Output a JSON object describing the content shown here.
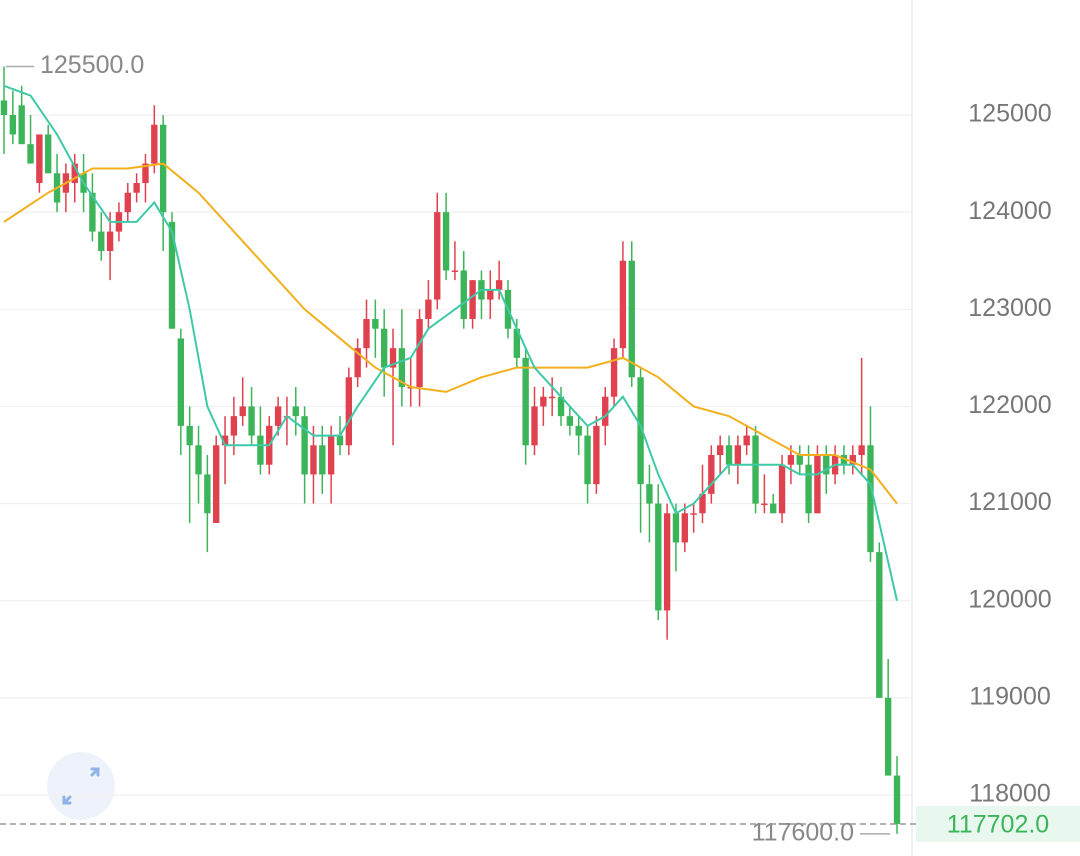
{
  "chart_data": {
    "type": "candlestick",
    "up_color": "#e0414f",
    "down_color": "#3cb55a",
    "ylim": [
      117372,
      126184
    ],
    "yticks": [
      118000,
      119000,
      120000,
      121000,
      122000,
      123000,
      124000,
      125000
    ],
    "grid": true,
    "open": [
      125150,
      125000,
      125100,
      124700,
      124300,
      124800,
      124400,
      124200,
      124300,
      124400,
      124200,
      123800,
      123600,
      123800,
      124000,
      124200,
      124300,
      124500,
      124900,
      123900,
      122700,
      121800,
      121600,
      121300,
      120800,
      121600,
      121700,
      121900,
      122000,
      121700,
      121400,
      121800,
      121900,
      122000,
      121900,
      121300,
      121600,
      121300,
      121700,
      121600,
      122300,
      122600,
      122900,
      122800,
      122400,
      122600,
      122200,
      122200,
      122900,
      123100,
      124000,
      123400,
      123400,
      122900,
      123300,
      123100,
      123200,
      123200,
      122800,
      122500,
      121600,
      122000,
      122100,
      122100,
      121900,
      121800,
      121700,
      121200,
      121800,
      122100,
      122600,
      123500,
      122300,
      121200,
      121000,
      119900,
      120900,
      120600,
      120900,
      120900,
      121100,
      121500,
      121600,
      121400,
      121600,
      121700,
      121000,
      121000,
      120900,
      121400,
      121500,
      121400,
      120900,
      121500,
      121300,
      121500,
      121400,
      121500,
      121600,
      120500,
      119000,
      118200
    ],
    "high": [
      125500,
      125250,
      125300,
      125000,
      124800,
      124900,
      124600,
      124500,
      124600,
      124600,
      124400,
      124000,
      124000,
      124100,
      124300,
      124400,
      124600,
      125100,
      125000,
      124000,
      122800,
      122000,
      121800,
      121500,
      121700,
      121900,
      122100,
      122300,
      122200,
      122000,
      121900,
      122100,
      122100,
      122200,
      122000,
      121800,
      121800,
      121800,
      121900,
      122400,
      122700,
      123100,
      123100,
      123000,
      122800,
      123000,
      122500,
      123000,
      123300,
      124200,
      124200,
      123700,
      123600,
      123300,
      123400,
      123400,
      123500,
      123300,
      122900,
      122600,
      122200,
      122200,
      122300,
      122200,
      122000,
      121900,
      121800,
      121900,
      122200,
      122700,
      123700,
      123700,
      122400,
      121400,
      121200,
      121000,
      121000,
      121000,
      121000,
      121400,
      121600,
      121700,
      121700,
      121700,
      121800,
      121800,
      121300,
      121100,
      121500,
      121600,
      121600,
      121600,
      121600,
      121600,
      121600,
      121600,
      121600,
      122500,
      122000,
      120600,
      119400,
      118400
    ],
    "low": [
      124600,
      124700,
      124700,
      124500,
      124200,
      124400,
      124000,
      124000,
      124100,
      124000,
      123700,
      123500,
      123300,
      123700,
      123900,
      124100,
      124100,
      124400,
      123600,
      122800,
      121500,
      120800,
      121000,
      120500,
      120800,
      121200,
      121500,
      121800,
      121600,
      121300,
      121300,
      121700,
      121600,
      121700,
      121000,
      121000,
      121100,
      121000,
      121500,
      121500,
      122200,
      122400,
      122500,
      122100,
      121600,
      122000,
      122000,
      122000,
      122800,
      123000,
      123300,
      123300,
      122800,
      122800,
      122900,
      122900,
      123100,
      122700,
      122400,
      121400,
      121500,
      121800,
      121900,
      121800,
      121700,
      121500,
      121000,
      121100,
      121600,
      122000,
      122500,
      122200,
      120700,
      120600,
      119800,
      119600,
      120300,
      120500,
      120700,
      120800,
      121000,
      121300,
      121300,
      121200,
      121500,
      120900,
      120900,
      120900,
      120800,
      121200,
      121300,
      120800,
      120900,
      121100,
      121200,
      121300,
      121300,
      121300,
      120400,
      119000,
      118200,
      117600
    ],
    "close": [
      125000,
      124800,
      124700,
      124500,
      124800,
      124400,
      124100,
      124400,
      124500,
      124200,
      123800,
      123600,
      123800,
      124000,
      124200,
      124300,
      124500,
      124900,
      124000,
      122800,
      121800,
      121600,
      121300,
      120900,
      121600,
      121700,
      121900,
      122000,
      121700,
      121400,
      121800,
      122000,
      121900,
      121900,
      121300,
      121600,
      121300,
      121700,
      121600,
      122300,
      122600,
      122900,
      122800,
      122400,
      122600,
      122200,
      122200,
      122900,
      123100,
      124000,
      123400,
      123400,
      122900,
      123300,
      123100,
      123200,
      123300,
      122800,
      122500,
      121600,
      122000,
      122100,
      122100,
      121900,
      121800,
      121700,
      121200,
      121800,
      122100,
      122600,
      123500,
      122300,
      121200,
      121000,
      119900,
      120900,
      120600,
      120900,
      120900,
      121100,
      121500,
      121600,
      121400,
      121600,
      121700,
      121000,
      121000,
      120900,
      121400,
      121500,
      121400,
      120900,
      121500,
      121300,
      121500,
      121400,
      121500,
      121600,
      120500,
      119000,
      118200,
      117702
    ],
    "series": [
      {
        "color": "#f2b01e",
        "x": [
          0,
          5,
          10,
          14,
          18,
          22,
          26,
          30,
          34,
          38,
          42,
          46,
          50,
          54,
          58,
          62,
          66,
          70,
          74,
          78,
          82,
          86,
          90,
          94,
          98,
          101
        ],
        "values": [
          123900,
          124200,
          124450,
          124450,
          124500,
          124200,
          123800,
          123400,
          123000,
          122700,
          122400,
          122200,
          122150,
          122300,
          122400,
          122400,
          122400,
          122500,
          122300,
          122000,
          121900,
          121700,
          121500,
          121500,
          121350,
          121000
        ]
      },
      {
        "color": "#3ec9a7",
        "x": [
          0,
          3,
          6,
          9,
          12,
          15,
          17,
          19,
          21,
          23,
          25,
          27,
          30,
          32,
          35,
          38,
          40,
          43,
          46,
          48,
          51,
          54,
          56,
          58,
          60,
          63,
          66,
          68,
          70,
          72,
          74,
          76,
          78,
          80,
          82,
          84,
          86,
          88,
          90,
          92,
          94,
          96,
          98,
          101
        ],
        "values": [
          125300,
          125200,
          124800,
          124300,
          123900,
          123900,
          124100,
          123800,
          123000,
          122000,
          121600,
          121600,
          121600,
          121900,
          121700,
          121700,
          122000,
          122400,
          122500,
          122800,
          123000,
          123200,
          123200,
          122800,
          122400,
          122100,
          121800,
          121900,
          122100,
          121800,
          121300,
          120900,
          121000,
          121200,
          121400,
          121400,
          121400,
          121400,
          121300,
          121300,
          121400,
          121400,
          121200,
          120000
        ]
      }
    ],
    "max_marker": {
      "value": 125500,
      "label": "125500.0"
    },
    "min_marker": {
      "value": 117600,
      "label": "117600.0"
    },
    "last_price": {
      "value": 117702,
      "label": "117702.0"
    }
  }
}
